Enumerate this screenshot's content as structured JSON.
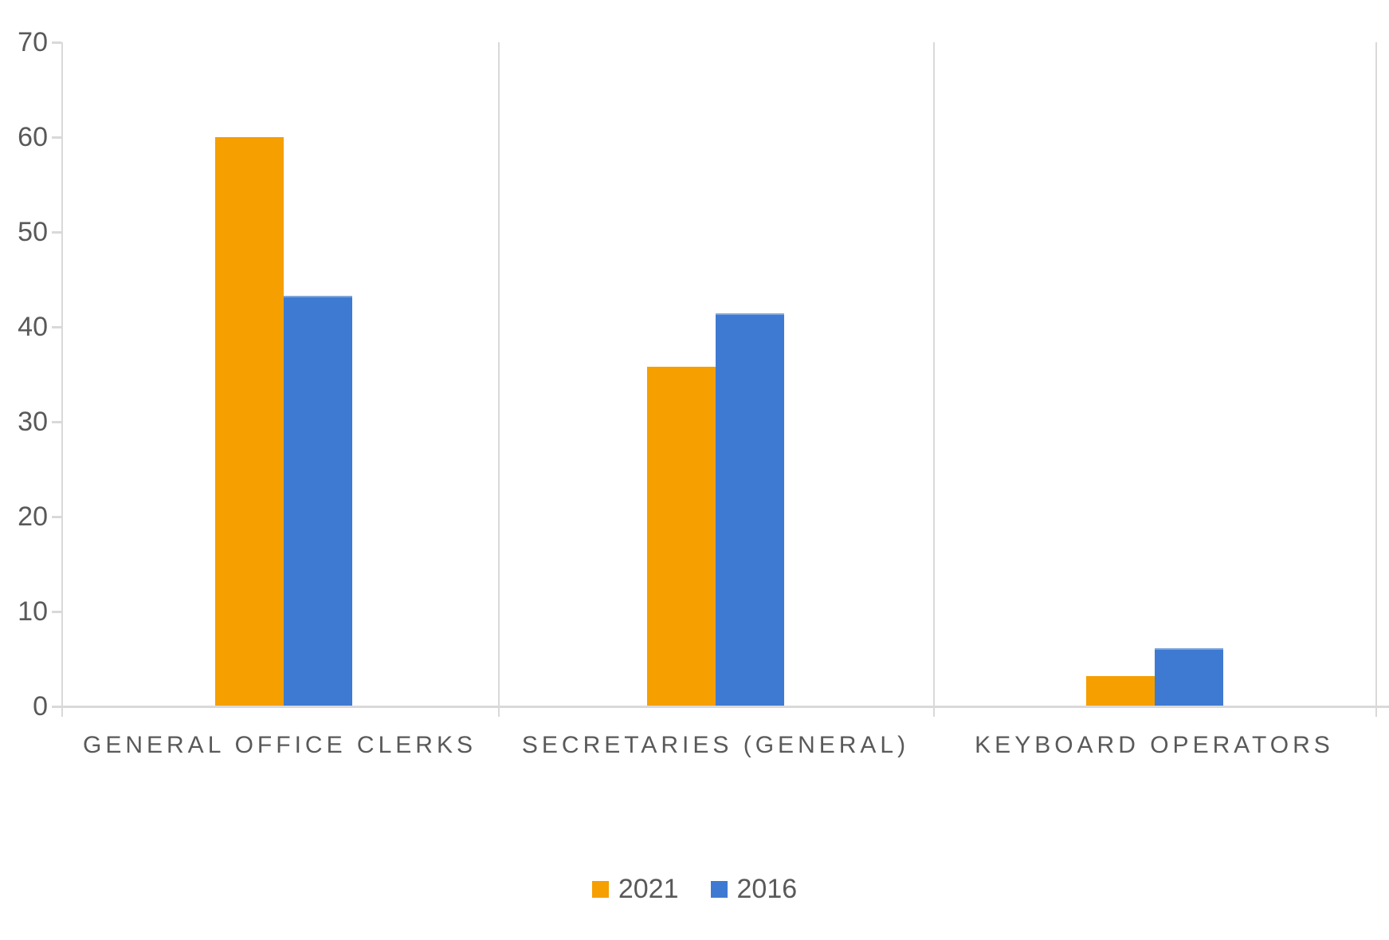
{
  "chart_data": {
    "type": "bar",
    "title": "",
    "xlabel": "",
    "ylabel": "",
    "categories": [
      "GENERAL OFFICE CLERKS",
      "SECRETARIES (GENERAL)",
      "KEYBOARD OPERATORS"
    ],
    "series": [
      {
        "name": "2021",
        "color": "#f59f00",
        "values": [
          60.0,
          35.8,
          3.2
        ]
      },
      {
        "name": "2016",
        "color": "#3e7ad1",
        "values": [
          43.3,
          41.4,
          6.1
        ]
      }
    ],
    "ylim": [
      0,
      70
    ],
    "yticks": [
      0,
      10,
      20,
      30,
      40,
      50,
      60,
      70
    ],
    "grid": "category-boundary-vertical-lines",
    "legend_position": "bottom-center",
    "colors": {
      "axis_line": "#d9d9d9",
      "tick_text": "#595959",
      "category_text": "#595959",
      "legend_text": "#595959",
      "background": "#ffffff"
    }
  }
}
